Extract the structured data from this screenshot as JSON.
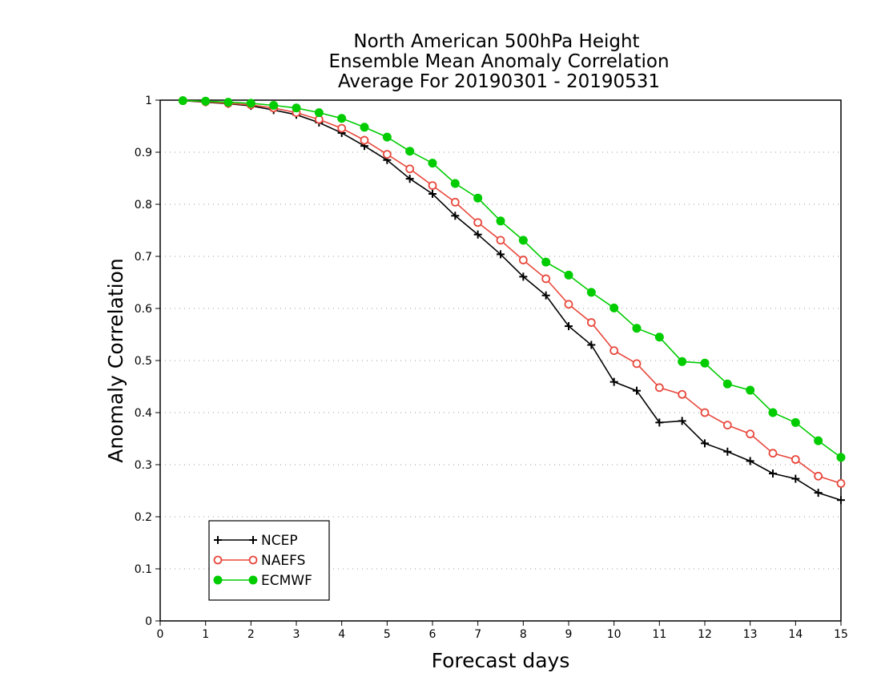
{
  "chart_data": {
    "type": "line",
    "title_lines": [
      "North American 500hPa Height",
      "Ensemble Mean Anomaly Correlation",
      "Average For 20190301 - 20190531"
    ],
    "xlabel": "Forecast days",
    "ylabel": "Anomaly Correlation",
    "xlim": [
      0,
      15
    ],
    "ylim": [
      0,
      1
    ],
    "x_ticks": [
      0,
      1,
      2,
      3,
      4,
      5,
      6,
      7,
      8,
      9,
      10,
      11,
      12,
      13,
      14,
      15
    ],
    "y_ticks": [
      0,
      0.1,
      0.2,
      0.3,
      0.4,
      0.5,
      0.6,
      0.7,
      0.8,
      0.9,
      1
    ],
    "y_tick_labels": [
      "0",
      "0.1",
      "0.2",
      "0.3",
      "0.4",
      "0.5",
      "0.6",
      "0.7",
      "0.8",
      "0.9",
      "1"
    ],
    "grid": "horizontal dotted",
    "legend_position": "bottom-left",
    "x": [
      0.5,
      1,
      1.5,
      2,
      2.5,
      3,
      3.5,
      4,
      4.5,
      5,
      5.5,
      6,
      6.5,
      7,
      7.5,
      8,
      8.5,
      9,
      9.5,
      10,
      10.5,
      11,
      11.5,
      12,
      12.5,
      13,
      13.5,
      14,
      14.5,
      15
    ],
    "series": [
      {
        "name": "NCEP",
        "color": "#000000",
        "marker": "plus",
        "values": [
          0.999,
          0.996,
          0.993,
          0.989,
          0.981,
          0.972,
          0.957,
          0.937,
          0.912,
          0.885,
          0.849,
          0.82,
          0.778,
          0.742,
          0.704,
          0.661,
          0.625,
          0.566,
          0.53,
          0.459,
          0.442,
          0.381,
          0.384,
          0.341,
          0.325,
          0.307,
          0.283,
          0.273,
          0.246,
          0.232
        ]
      },
      {
        "name": "NAEFS",
        "color": "#e8483c",
        "marker": "open-circle",
        "values": [
          0.999,
          0.997,
          0.994,
          0.991,
          0.985,
          0.976,
          0.963,
          0.946,
          0.923,
          0.896,
          0.868,
          0.836,
          0.804,
          0.765,
          0.731,
          0.693,
          0.657,
          0.608,
          0.573,
          0.519,
          0.494,
          0.448,
          0.435,
          0.4,
          0.376,
          0.359,
          0.322,
          0.31,
          0.278,
          0.264
        ]
      },
      {
        "name": "ECMWF",
        "color": "#00cc00",
        "marker": "filled-circle",
        "values": [
          0.999,
          0.998,
          0.996,
          0.994,
          0.99,
          0.985,
          0.976,
          0.965,
          0.948,
          0.929,
          0.902,
          0.879,
          0.84,
          0.812,
          0.768,
          0.731,
          0.689,
          0.664,
          0.631,
          0.601,
          0.562,
          0.545,
          0.498,
          0.495,
          0.455,
          0.443,
          0.4,
          0.381,
          0.346,
          0.314
        ]
      }
    ]
  }
}
